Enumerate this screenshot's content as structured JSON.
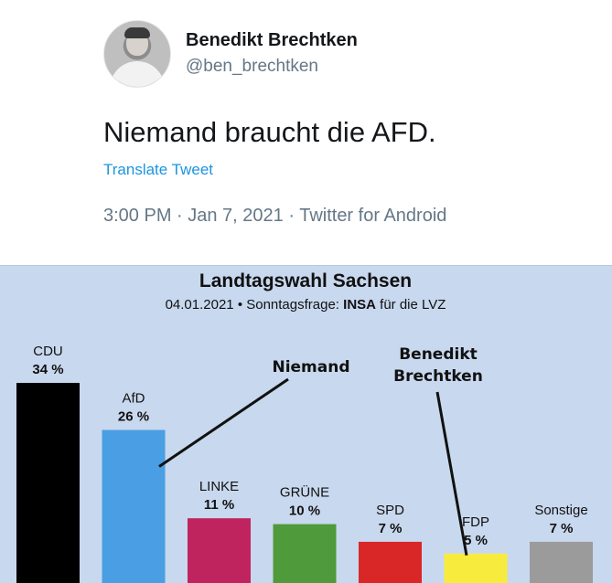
{
  "tweet": {
    "author_name": "Benedikt Brechtken",
    "handle": "@ben_brechtken",
    "text": "Niemand braucht die AFD.",
    "translate_label": "Translate Tweet",
    "meta": "3:00 PM · Jan 7, 2021 · Twitter for Android",
    "avatar_icon": "profile-photo"
  },
  "chart_data": {
    "type": "bar",
    "title": "Landtagswahl Sachsen",
    "subtitle_prefix": "04.01.2021 • Sonntagsfrage: ",
    "subtitle_bold": "INSA",
    "subtitle_suffix": " für die LVZ",
    "categories": [
      "CDU",
      "AfD",
      "LINKE",
      "GRÜNE",
      "SPD",
      "FDP",
      "Sonstige"
    ],
    "values": [
      34,
      26,
      11,
      10,
      7,
      5,
      7
    ],
    "value_labels": [
      "34 %",
      "26 %",
      "11 %",
      "10 %",
      "7 %",
      "5 %",
      "7 %"
    ],
    "colors": [
      "#000000",
      "#4a9ee3",
      "#c0245f",
      "#4f9a3a",
      "#d92727",
      "#f7ec3e",
      "#9b9b9b"
    ],
    "ylim": [
      0,
      34
    ],
    "annotations": [
      {
        "text": "Niemand",
        "target": "AfD"
      },
      {
        "text": "Benedikt\nBrechtken",
        "target": "FDP"
      }
    ],
    "background_color": "#c8d8ee"
  }
}
